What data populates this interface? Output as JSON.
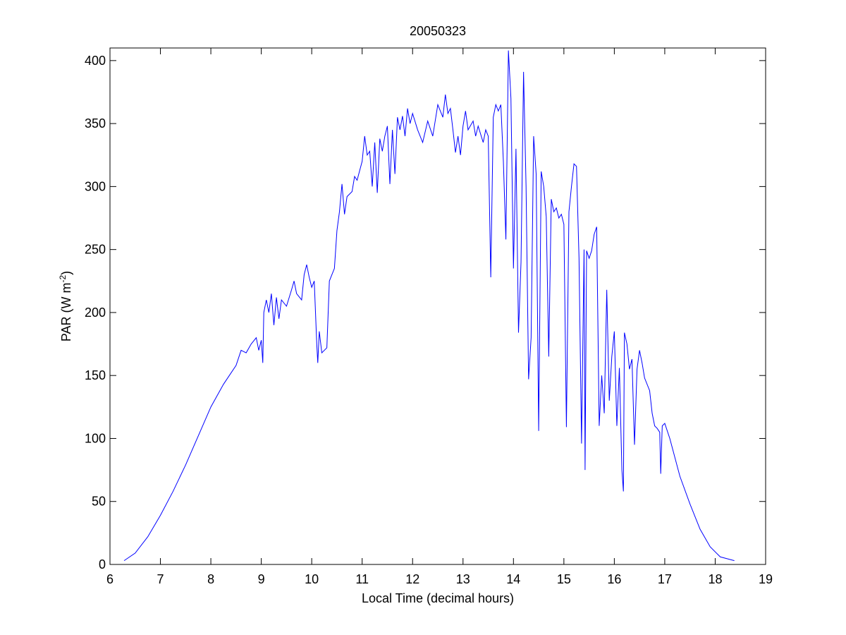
{
  "chart_data": {
    "type": "line",
    "title": "20050323",
    "xlabel": "Local Time (decimal hours)",
    "ylabel": [
      "PAR (W m",
      "-2",
      ")"
    ],
    "x": [
      6.28,
      6.5,
      6.75,
      7,
      7.25,
      7.5,
      7.75,
      8,
      8.25,
      8.5,
      8.6,
      8.7,
      8.8,
      8.9,
      8.95,
      9.0,
      9.03,
      9.05,
      9.1,
      9.15,
      9.2,
      9.25,
      9.3,
      9.35,
      9.4,
      9.5,
      9.6,
      9.65,
      9.7,
      9.8,
      9.85,
      9.9,
      9.95,
      10.0,
      10.05,
      10.1,
      10.12,
      10.15,
      10.2,
      10.3,
      10.35,
      10.4,
      10.45,
      10.5,
      10.55,
      10.6,
      10.65,
      10.7,
      10.8,
      10.85,
      10.9,
      11.0,
      11.05,
      11.1,
      11.15,
      11.2,
      11.25,
      11.3,
      11.35,
      11.4,
      11.45,
      11.5,
      11.55,
      11.6,
      11.65,
      11.7,
      11.75,
      11.8,
      11.85,
      11.9,
      11.95,
      12.0,
      12.1,
      12.2,
      12.3,
      12.4,
      12.5,
      12.6,
      12.65,
      12.7,
      12.75,
      12.8,
      12.85,
      12.9,
      12.95,
      13.0,
      13.05,
      13.1,
      13.2,
      13.25,
      13.3,
      13.4,
      13.45,
      13.5,
      13.55,
      13.6,
      13.65,
      13.7,
      13.75,
      13.8,
      13.85,
      13.9,
      13.95,
      14.0,
      14.05,
      14.1,
      14.15,
      14.2,
      14.25,
      14.3,
      14.35,
      14.4,
      14.45,
      14.5,
      14.55,
      14.6,
      14.65,
      14.7,
      14.75,
      14.8,
      14.85,
      14.9,
      14.95,
      15.0,
      15.05,
      15.1,
      15.15,
      15.2,
      15.25,
      15.3,
      15.35,
      15.4,
      15.42,
      15.45,
      15.5,
      15.55,
      15.6,
      15.65,
      15.7,
      15.75,
      15.8,
      15.85,
      15.9,
      15.95,
      16.0,
      16.05,
      16.1,
      16.15,
      16.18,
      16.2,
      16.25,
      16.3,
      16.35,
      16.4,
      16.45,
      16.5,
      16.55,
      16.6,
      16.7,
      16.75,
      16.8,
      16.85,
      16.9,
      16.92,
      16.95,
      17.0,
      17.1,
      17.2,
      17.3,
      17.5,
      17.7,
      17.9,
      18.1,
      18.38
    ],
    "series": [
      {
        "color": "#0000ff",
        "values": [
          3,
          9,
          22,
          39,
          58,
          79,
          102,
          125,
          143,
          158,
          170,
          168,
          175,
          180,
          170,
          178,
          160,
          200,
          210,
          200,
          215,
          190,
          212,
          195,
          210,
          205,
          218,
          225,
          215,
          210,
          230,
          238,
          228,
          220,
          225,
          175,
          160,
          185,
          168,
          172,
          225,
          230,
          235,
          265,
          280,
          302,
          278,
          292,
          296,
          308,
          305,
          320,
          340,
          325,
          328,
          300,
          335,
          295,
          338,
          328,
          340,
          348,
          302,
          345,
          310,
          355,
          345,
          356,
          340,
          362,
          350,
          358,
          345,
          335,
          352,
          340,
          365,
          355,
          373,
          358,
          362,
          345,
          327,
          340,
          325,
          348,
          360,
          345,
          352,
          340,
          348,
          335,
          345,
          340,
          228,
          355,
          365,
          360,
          365,
          320,
          258,
          408,
          370,
          235,
          330,
          184,
          240,
          391,
          300,
          147,
          180,
          340,
          310,
          106,
          312,
          300,
          276,
          165,
          290,
          280,
          283,
          275,
          278,
          270,
          109,
          280,
          300,
          318,
          316,
          243,
          96,
          250,
          75,
          249,
          243,
          249,
          262,
          268,
          110,
          150,
          120,
          218,
          130,
          165,
          185,
          110,
          156,
          75,
          58,
          184,
          175,
          155,
          163,
          95,
          155,
          170,
          160,
          148,
          138,
          120,
          110,
          108,
          105,
          72,
          110,
          112,
          100,
          85,
          70,
          48,
          28,
          14,
          6,
          3
        ]
      }
    ],
    "xlim": [
      6,
      19
    ],
    "ylim": [
      0,
      410
    ],
    "xticks": [
      6,
      7,
      8,
      9,
      10,
      11,
      12,
      13,
      14,
      15,
      16,
      17,
      18,
      19
    ],
    "yticks": [
      0,
      50,
      100,
      150,
      200,
      250,
      300,
      350,
      400
    ]
  }
}
